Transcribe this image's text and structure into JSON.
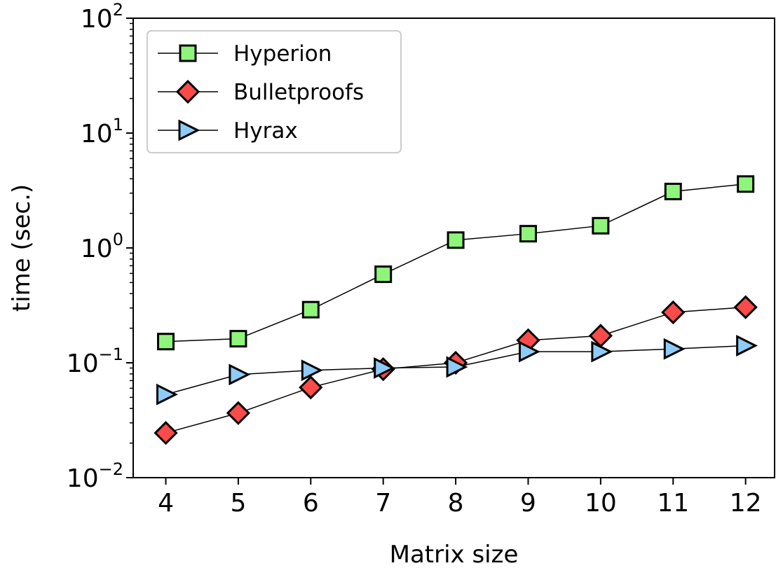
{
  "chart_data": {
    "type": "line",
    "title": "",
    "xlabel": "Matrix size",
    "ylabel": "time (sec.)",
    "yscale": "log",
    "x": [
      4,
      5,
      6,
      7,
      8,
      9,
      10,
      11,
      12
    ],
    "xlim": [
      3.55,
      12.4
    ],
    "ylim": [
      0.01,
      100
    ],
    "yticks": [
      {
        "value": 0.01,
        "base": "10",
        "exp": "−2"
      },
      {
        "value": 0.1,
        "base": "10",
        "exp": "−1"
      },
      {
        "value": 1,
        "base": "10",
        "exp": "0"
      },
      {
        "value": 10,
        "base": "10",
        "exp": "1"
      },
      {
        "value": 100,
        "base": "10",
        "exp": "2"
      }
    ],
    "xticks": [
      "4",
      "5",
      "6",
      "7",
      "8",
      "9",
      "10",
      "11",
      "12"
    ],
    "grid": false,
    "legend_position": "top-left",
    "series": [
      {
        "name": "Hyperion",
        "marker": "square",
        "color": "#8ff57a",
        "values": [
          0.153,
          0.162,
          0.29,
          0.59,
          1.17,
          1.33,
          1.56,
          3.1,
          3.6
        ]
      },
      {
        "name": "Bulletproofs",
        "marker": "diamond",
        "color": "#fa4b4b",
        "values": [
          0.0245,
          0.0365,
          0.061,
          0.088,
          0.1,
          0.157,
          0.172,
          0.275,
          0.305
        ]
      },
      {
        "name": "Hyrax",
        "marker": "triangle-right",
        "color": "#8ecbf7",
        "values": [
          0.053,
          0.079,
          0.086,
          0.09,
          0.092,
          0.125,
          0.125,
          0.132,
          0.141
        ]
      }
    ]
  }
}
